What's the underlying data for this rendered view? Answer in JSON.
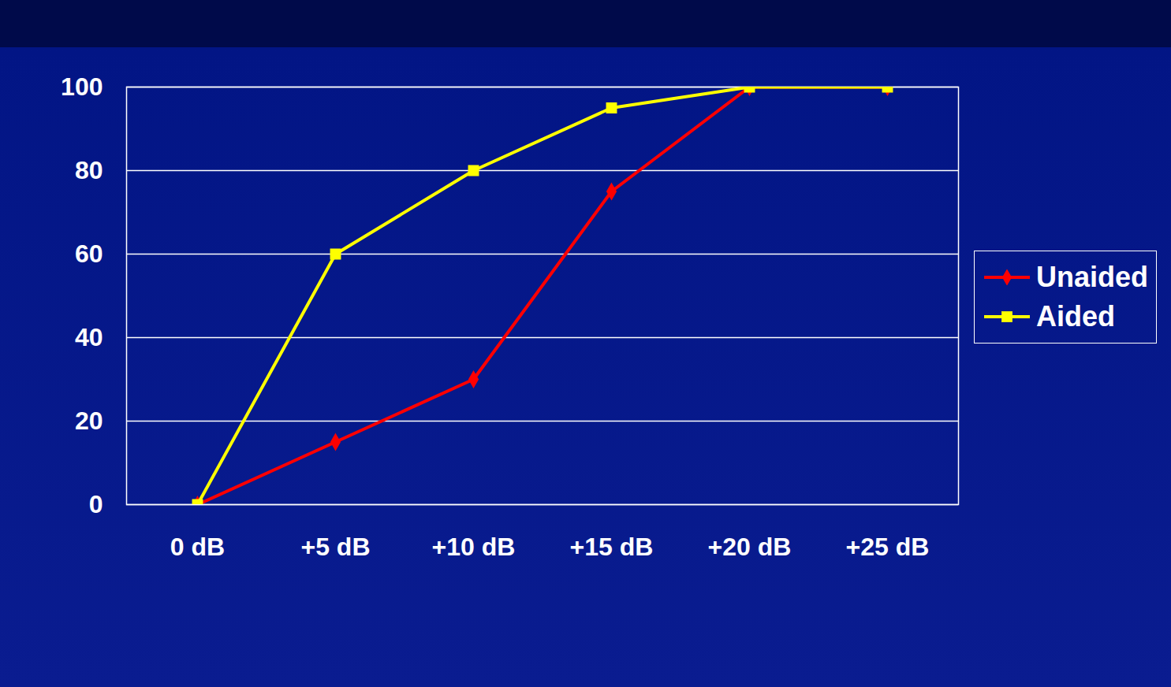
{
  "chart_data": {
    "type": "line",
    "categories": [
      "0 dB",
      "+5 dB",
      "+10 dB",
      "+15 dB",
      "+20 dB",
      "+25 dB"
    ],
    "series": [
      {
        "name": "Unaided",
        "color": "#ff0000",
        "marker": "diamond",
        "values": [
          0,
          15,
          30,
          75,
          100,
          100
        ]
      },
      {
        "name": "Aided",
        "color": "#ffff00",
        "marker": "square",
        "values": [
          0,
          60,
          80,
          95,
          100,
          100
        ]
      }
    ],
    "ylim": [
      0,
      100
    ],
    "yticks": [
      0,
      20,
      40,
      60,
      80,
      100
    ],
    "grid": true,
    "legend": "right"
  }
}
